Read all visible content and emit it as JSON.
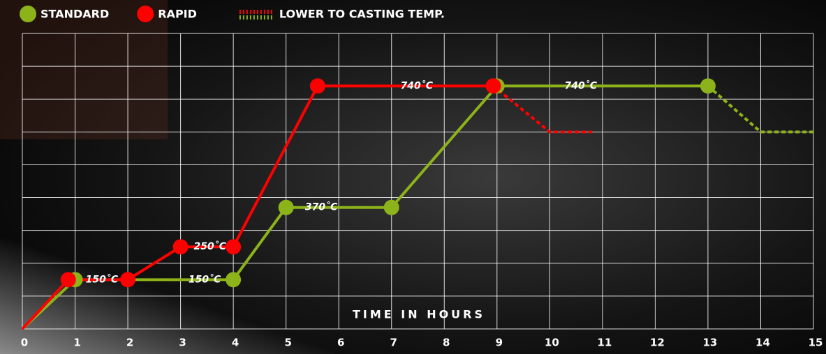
{
  "chart_data": {
    "type": "line",
    "x_label": "TIME IN HOURS",
    "xlim": [
      0,
      15
    ],
    "xticks": [
      0,
      1,
      2,
      3,
      4,
      5,
      6,
      7,
      8,
      9,
      10,
      11,
      12,
      13,
      14,
      15
    ],
    "ylim": [
      0,
      900
    ],
    "ygrid": [
      0,
      100,
      200,
      300,
      400,
      500,
      600,
      700,
      800,
      900
    ],
    "grid": true,
    "series": [
      {
        "name": "STANDARD",
        "color": "#8db31a",
        "x": [
          0,
          1,
          4,
          5,
          7,
          9,
          13
        ],
        "values": [
          0,
          150,
          150,
          370,
          370,
          740,
          740
        ],
        "casting": {
          "x": [
            14,
            15
          ],
          "values": [
            600,
            600
          ]
        }
      },
      {
        "name": "RAPID",
        "color": "#ff0000",
        "x": [
          0,
          0.87,
          2,
          3,
          4,
          5.6,
          8.93
        ],
        "values": [
          0,
          150,
          150,
          250,
          250,
          740,
          740
        ],
        "casting": {
          "x": [
            10,
            10.8
          ],
          "values": [
            600,
            600
          ]
        }
      }
    ],
    "casting_legend": "LOWER TO CASTING TEMP.",
    "annotations": [
      {
        "text": "150˚C",
        "x": 1.2,
        "y": 150
      },
      {
        "text": "250˚C",
        "x": 3.25,
        "y": 250
      },
      {
        "text": "150˚C",
        "x": 3.15,
        "y": 150
      },
      {
        "text": "370˚C",
        "x": 5.36,
        "y": 370
      },
      {
        "text": "740˚C",
        "x": 7.17,
        "y": 740
      },
      {
        "text": "740˚C",
        "x": 10.28,
        "y": 740
      }
    ]
  }
}
